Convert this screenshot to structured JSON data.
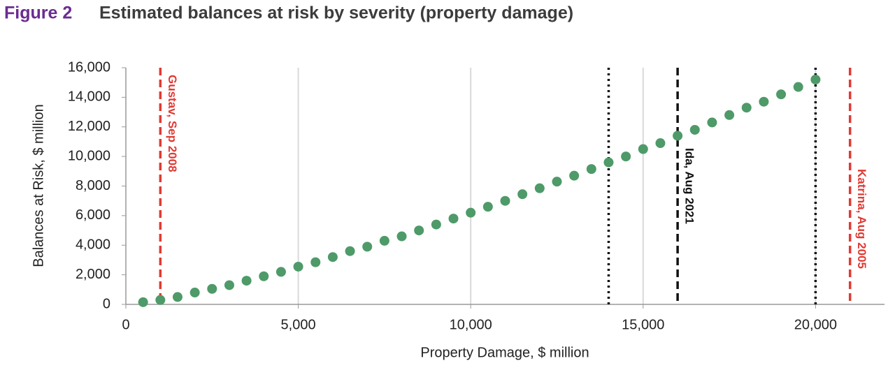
{
  "chart_data": {
    "type": "scatter",
    "figure_label": "Figure 2",
    "title": "Estimated balances at risk by severity (property damage)",
    "x_label": "Property Damage, $ million",
    "y_label": "Balances at Risk, $ million",
    "color": "#4e9a69",
    "x": [
      500,
      1000,
      1500,
      2000,
      2500,
      3000,
      3500,
      4000,
      4500,
      5000,
      5500,
      6000,
      6500,
      7000,
      7500,
      8000,
      8500,
      9000,
      9500,
      10000,
      10500,
      11000,
      11500,
      12000,
      12500,
      13000,
      13500,
      14000,
      14500,
      15000,
      15500,
      16000,
      16500,
      17000,
      17500,
      18000,
      18500,
      19000,
      19500,
      20000
    ],
    "values": [
      150,
      300,
      500,
      800,
      1050,
      1300,
      1600,
      1900,
      2200,
      2550,
      2850,
      3200,
      3600,
      3900,
      4300,
      4600,
      5000,
      5400,
      5800,
      6200,
      6600,
      7000,
      7450,
      7850,
      8300,
      8700,
      9150,
      9600,
      10000,
      10500,
      10900,
      11400,
      11800,
      12300,
      12800,
      13300,
      13700,
      14200,
      14700,
      15200
    ],
    "xlim": [
      0,
      22000
    ],
    "ylim": [
      0,
      16000
    ],
    "xticks": [
      0,
      {
        "value": 5000,
        "label": "5,000"
      },
      {
        "value": 10000,
        "label": "10,000"
      },
      {
        "value": 15000,
        "label": "15,000"
      },
      {
        "value": 20000,
        "label": "20,000"
      }
    ],
    "yticks": [
      0,
      {
        "value": 2000,
        "label": "2,000"
      },
      {
        "value": 4000,
        "label": "4,000"
      },
      {
        "value": 6000,
        "label": "6,000"
      },
      {
        "value": 8000,
        "label": "8,000"
      },
      {
        "value": 10000,
        "label": "10,000"
      },
      {
        "value": 12000,
        "label": "12,000"
      },
      {
        "value": 14000,
        "label": "14,000"
      },
      {
        "value": 16000,
        "label": "16,000"
      }
    ],
    "grid": "x",
    "reference_lines": [
      {
        "x": 1000,
        "label": "Gustav, Sep 2008",
        "color": "#e03a33",
        "style": "dashed"
      },
      {
        "x": 14000,
        "color": "#111111",
        "style": "dotted"
      },
      {
        "x": 16000,
        "label": "Ida, Aug 2021",
        "color": "#111111",
        "style": "dashed"
      },
      {
        "x": 20000,
        "color": "#111111",
        "style": "dotted"
      },
      {
        "x": 21000,
        "label": "Katrina, Aug 2005",
        "color": "#e03a33",
        "style": "dashed"
      }
    ]
  }
}
